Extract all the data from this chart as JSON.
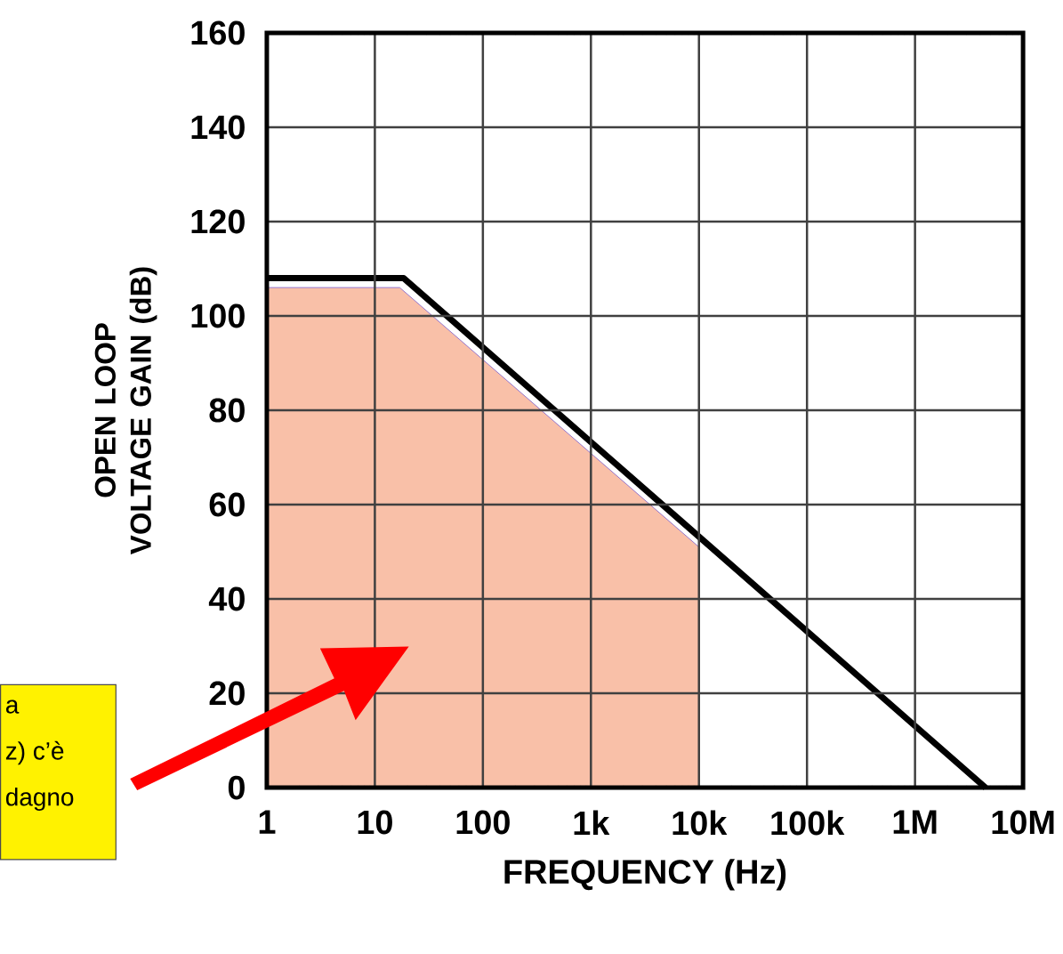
{
  "chart_data": {
    "type": "line",
    "xlabel": "FREQUENCY (Hz)",
    "ylabel": "OPEN LOOP VOLTAGE GAIN (dB)",
    "annotations": [
      "a",
      "z) c’è",
      "dagno"
    ],
    "log": "x",
    "grid": true,
    "marker": "none",
    "line_style": "solid",
    "xlim": [
      1,
      10000000
    ],
    "ylim": [
      0,
      160
    ],
    "xticks": [
      1,
      10,
      100,
      {
        "value": 1000,
        "label": "1k"
      },
      {
        "value": 10000,
        "label": "10k"
      },
      {
        "value": 100000,
        "label": "100k"
      },
      {
        "value": 1000000,
        "label": "1M"
      },
      {
        "value": 10000000,
        "label": "10M"
      }
    ],
    "yticks": [
      0,
      20,
      40,
      60,
      80,
      100,
      120,
      140,
      160
    ],
    "series": [
      {
        "type": "area",
        "color": "#f9c0a8",
        "x": [
          1,
          17,
          10000
        ],
        "values": [
          106,
          106,
          51
        ]
      },
      {
        "color": "#000000",
        "x": [
          1,
          18.5,
          4500000
        ],
        "values": [
          108,
          108,
          0
        ]
      }
    ]
  }
}
